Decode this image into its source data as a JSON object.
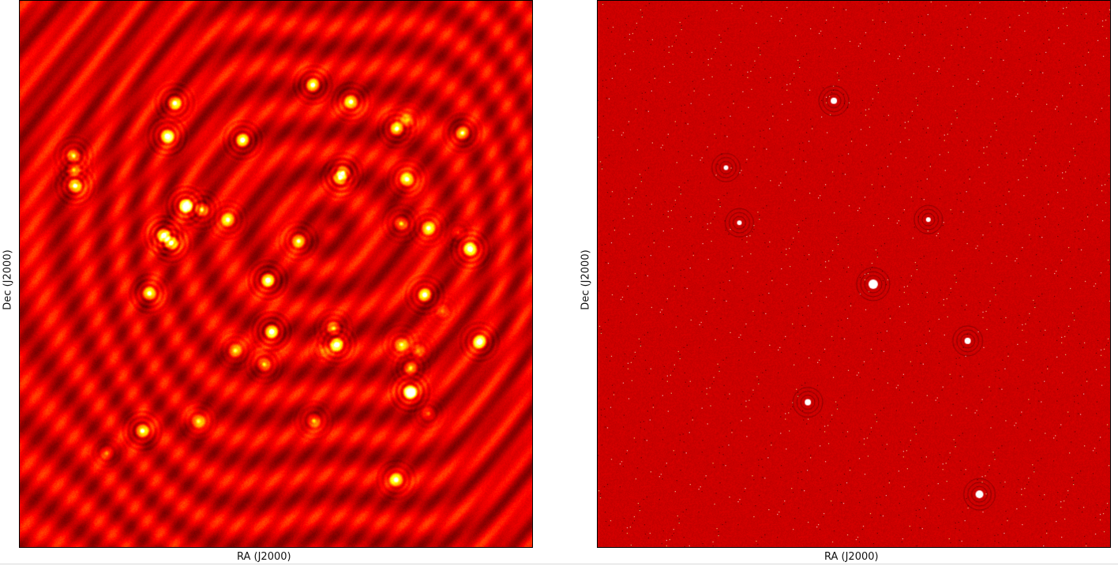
{
  "panels": [
    {
      "id": "left",
      "xlabel": "RA (J2000)",
      "ylabel": "Dec (J2000)",
      "colormap": "hot",
      "description_style": "dirty"
    },
    {
      "id": "right",
      "xlabel": "RA (J2000)",
      "ylabel": "Dec (J2000)",
      "colormap": "hot",
      "description_style": "residual"
    }
  ],
  "colors": {
    "background": "#8b0000",
    "frame": "#000000",
    "bright": "#ffffff"
  }
}
